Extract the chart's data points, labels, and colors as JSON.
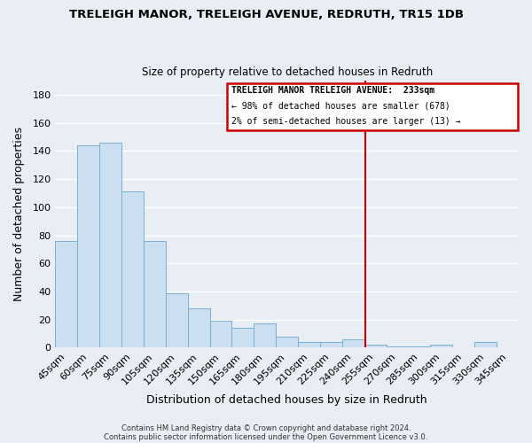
{
  "title": "TRELEIGH MANOR, TRELEIGH AVENUE, REDRUTH, TR15 1DB",
  "subtitle": "Size of property relative to detached houses in Redruth",
  "xlabel": "Distribution of detached houses by size in Redruth",
  "ylabel": "Number of detached properties",
  "bar_color": "#ccdff0",
  "bar_edge_color": "#7ab0d4",
  "categories": [
    "45sqm",
    "60sqm",
    "75sqm",
    "90sqm",
    "105sqm",
    "120sqm",
    "135sqm",
    "150sqm",
    "165sqm",
    "180sqm",
    "195sqm",
    "210sqm",
    "225sqm",
    "240sqm",
    "255sqm",
    "270sqm",
    "285sqm",
    "300sqm",
    "315sqm",
    "330sqm",
    "345sqm"
  ],
  "values": [
    76,
    144,
    146,
    111,
    76,
    39,
    28,
    19,
    14,
    17,
    8,
    4,
    4,
    6,
    2,
    1,
    1,
    2,
    0,
    4,
    0
  ],
  "marker_line_color": "#cc0000",
  "marker_bin_index": 13.53,
  "ylim": [
    0,
    190
  ],
  "yticks": [
    0,
    20,
    40,
    60,
    80,
    100,
    120,
    140,
    160,
    180
  ],
  "annotation_title": "TRELEIGH MANOR TRELEIGH AVENUE:  233sqm",
  "annotation_line1": "← 98% of detached houses are smaller (678)",
  "annotation_line2": "2% of semi-detached houses are larger (13) →",
  "footer1": "Contains HM Land Registry data © Crown copyright and database right 2024.",
  "footer2": "Contains public sector information licensed under the Open Government Licence v3.0.",
  "background_color": "#e8eef4",
  "plot_bg_color": "#e8eef4",
  "grid_color": "#ffffff",
  "title_fontsize": 9.5,
  "subtitle_fontsize": 8.5
}
